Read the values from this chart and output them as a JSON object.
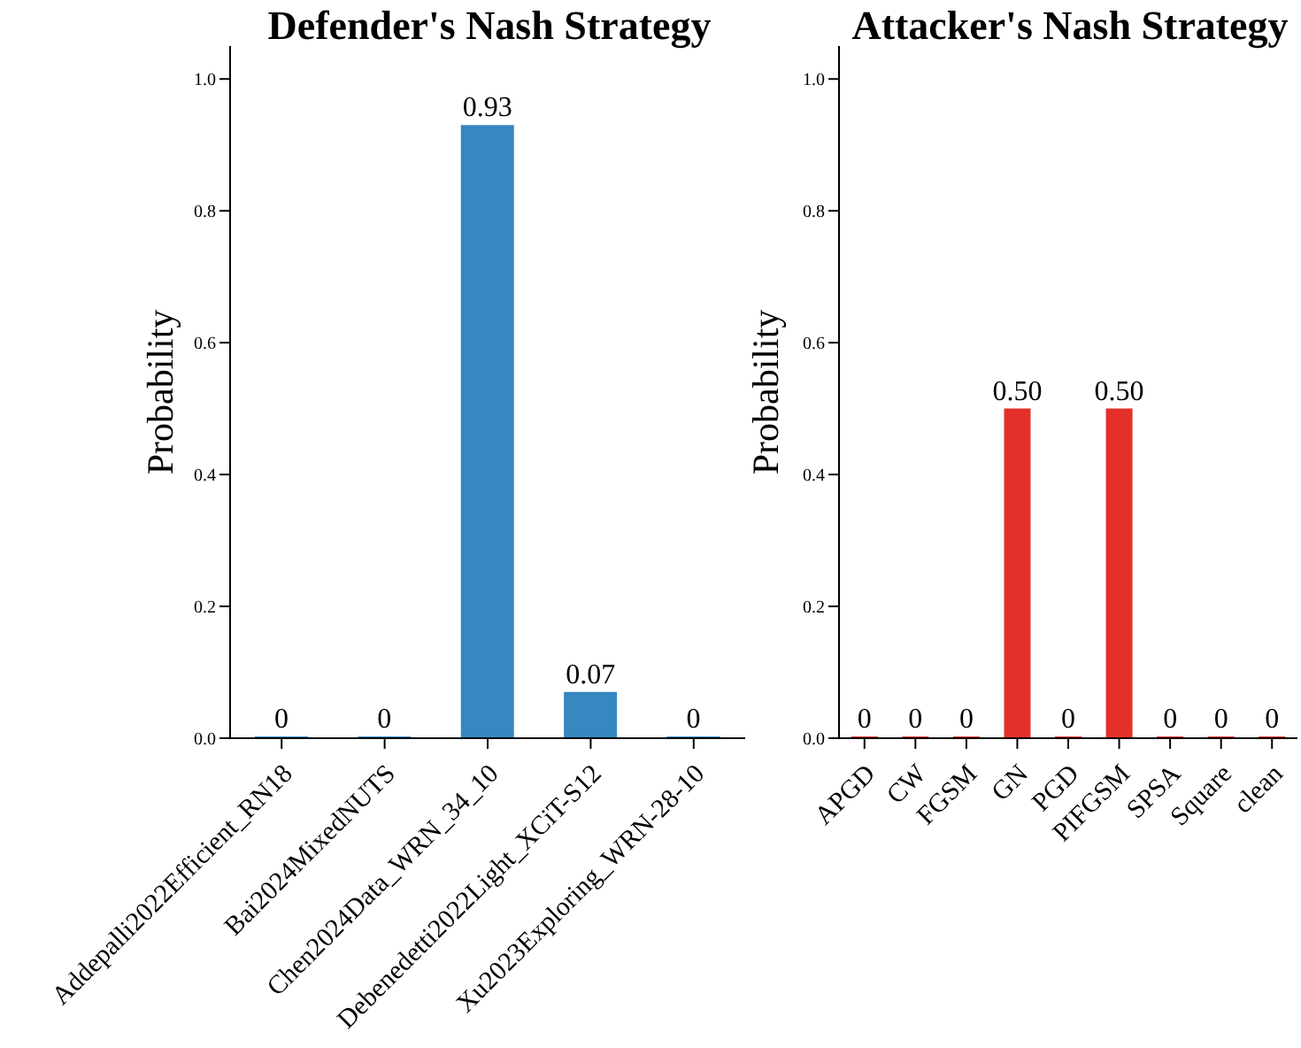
{
  "chart_data": [
    {
      "type": "bar",
      "title": "Defender's Nash Strategy",
      "ylabel": "Probability",
      "categories": [
        "Addepalli2022Efficient_RN18",
        "Bai2024MixedNUTS",
        "Chen2024Data_WRN_34_10",
        "Debenedetti2022Light_XCiT-S12",
        "Xu2023Exploring_WRN-28-10"
      ],
      "values": [
        0,
        0,
        0.93,
        0.07,
        0
      ],
      "value_labels": [
        "0",
        "0",
        "0.93",
        "0.07",
        "0"
      ],
      "color": "#3787c0",
      "ylim": [
        0,
        1.05
      ],
      "yticks": [
        {
          "value": 0,
          "label": "0.0"
        },
        {
          "value": 0.2,
          "label": "0.2"
        },
        {
          "value": 0.4,
          "label": "0.4"
        },
        {
          "value": 0.6,
          "label": "0.6"
        },
        {
          "value": 0.8,
          "label": "0.8"
        },
        {
          "value": 1,
          "label": "1.0"
        }
      ]
    },
    {
      "type": "bar",
      "title": "Attacker's Nash Strategy",
      "ylabel": "Probability",
      "categories": [
        "APGD",
        "CW",
        "FGSM",
        "GN",
        "PGD",
        "PIFGSM",
        "SPSA",
        "Square",
        "clean"
      ],
      "values": [
        0,
        0,
        0,
        0.5,
        0,
        0.5,
        0,
        0,
        0
      ],
      "value_labels": [
        "0",
        "0",
        "0",
        "0.50",
        "0",
        "0.50",
        "0",
        "0",
        "0"
      ],
      "color": "#e3312a",
      "ylim": [
        0,
        1.05
      ],
      "yticks": [
        {
          "value": 0,
          "label": "0.0"
        },
        {
          "value": 0.2,
          "label": "0.2"
        },
        {
          "value": 0.4,
          "label": "0.4"
        },
        {
          "value": 0.6,
          "label": "0.6"
        },
        {
          "value": 0.8,
          "label": "0.8"
        },
        {
          "value": 1,
          "label": "1.0"
        }
      ]
    }
  ]
}
